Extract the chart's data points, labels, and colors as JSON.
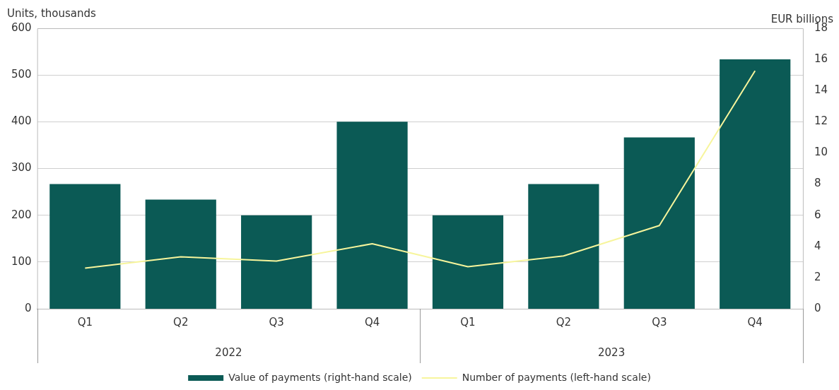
{
  "chart_data": {
    "type": "bar",
    "categories": [
      "Q1",
      "Q2",
      "Q3",
      "Q4",
      "Q1",
      "Q2",
      "Q3",
      "Q4"
    ],
    "series": [
      {
        "name": "Value of payments (right-hand scale)",
        "axis": "y2",
        "color": "#0b5a55",
        "values": [
          8,
          7,
          6,
          12,
          6,
          8,
          11,
          16
        ]
      },
      {
        "name": "Number of payments (left-hand scale)",
        "type": "line",
        "color": "#f7f59c",
        "marker": "none",
        "values": [
          87,
          111,
          102,
          139,
          90,
          113,
          178,
          509
        ]
      }
    ],
    "ylabel": "Units, thousands",
    "y2label": "EUR billions",
    "ylim": [
      0,
      600
    ],
    "yticks": [
      0,
      100,
      200,
      300,
      400,
      500,
      600
    ],
    "y2lim": [
      0,
      18
    ],
    "y2ticks": [
      0,
      2,
      4,
      6,
      8,
      10,
      12,
      14,
      16,
      18
    ],
    "annotations": [
      "2022",
      "2023"
    ],
    "grid": "y",
    "legend": "bottom"
  }
}
